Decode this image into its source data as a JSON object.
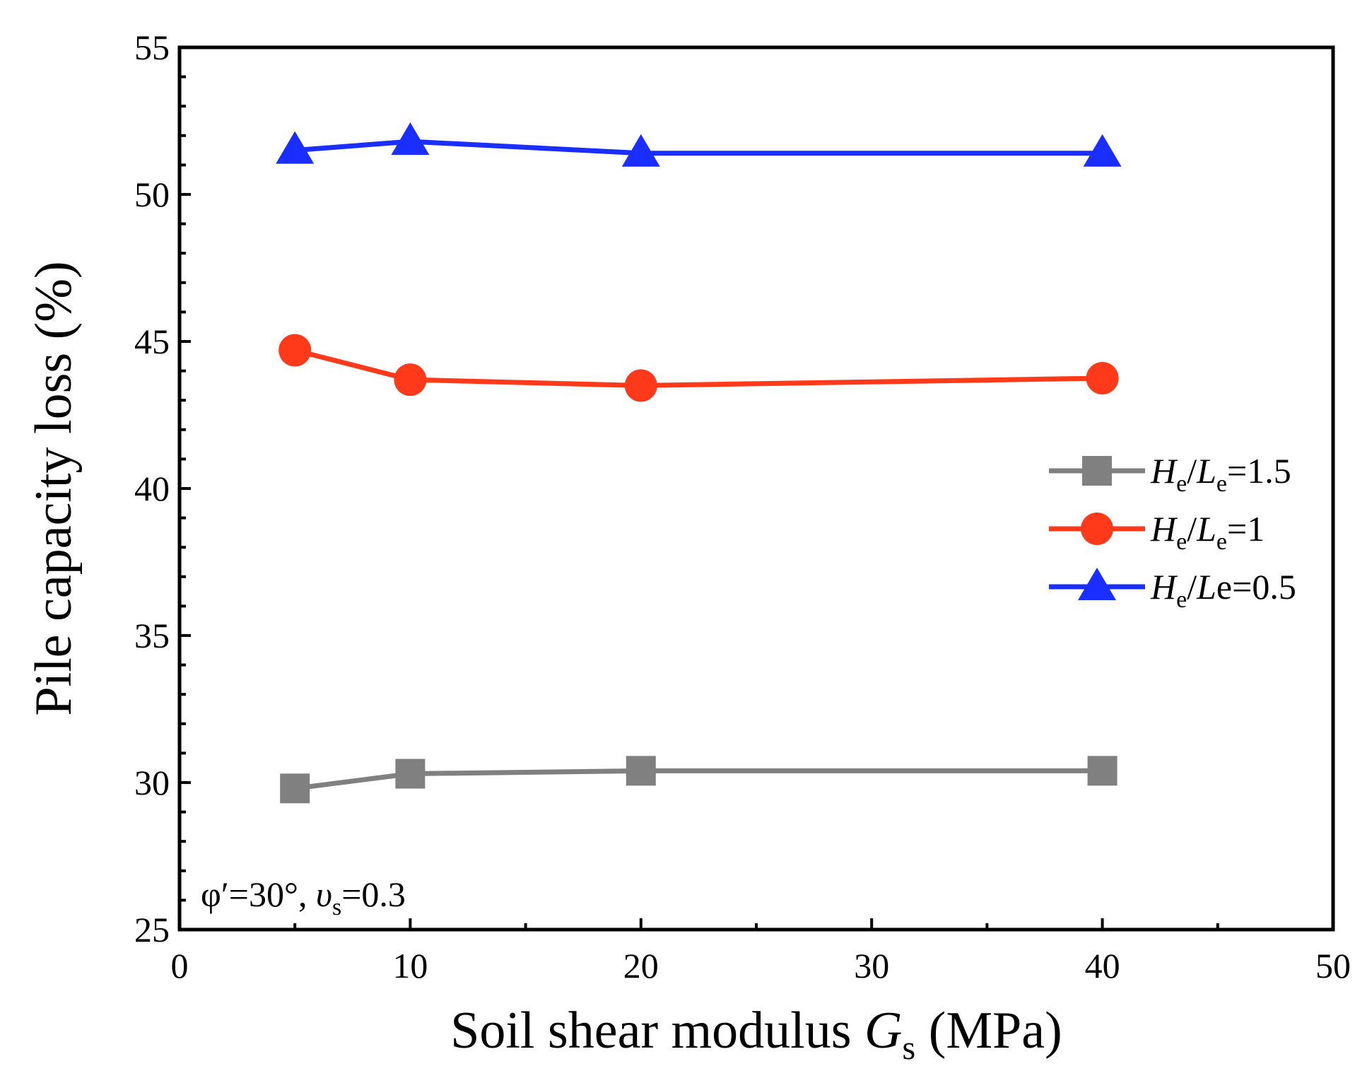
{
  "chart_data": {
    "type": "line",
    "title": "",
    "xlabel": {
      "main": "Soil shear modulus ",
      "var": "G",
      "sub": "s",
      "unit": " (MPa)"
    },
    "ylabel": "Pile capacity loss (%)",
    "xlim": [
      0,
      50
    ],
    "ylim": [
      25,
      55
    ],
    "xticks": [
      "0",
      "10",
      "20",
      "30",
      "40",
      "50"
    ],
    "yticks": [
      "25",
      "30",
      "35",
      "40",
      "45",
      "50",
      "55"
    ],
    "x": [
      5,
      10,
      20,
      40
    ],
    "series": [
      {
        "name": "He/Le=1.5",
        "label_parts": [
          "H",
          "e",
          "/",
          "L",
          "e",
          "=1.5"
        ],
        "marker": "square",
        "color": "#808080",
        "values": [
          29.8,
          30.3,
          30.4,
          30.4
        ]
      },
      {
        "name": "He/Le=1",
        "label_parts": [
          "H",
          "e",
          "/",
          "L",
          "e",
          "=1"
        ],
        "marker": "circle",
        "color": "#ff3a1a",
        "values": [
          44.7,
          43.7,
          43.5,
          43.75
        ]
      },
      {
        "name": "He/Le=0.5",
        "label_parts": [
          "H",
          "e",
          "/",
          "L",
          "",
          "e=0.5"
        ],
        "marker": "triangle",
        "color": "#1a2eff",
        "values": [
          51.5,
          51.8,
          51.4,
          51.4
        ]
      }
    ],
    "legend_position": "center-right",
    "annotation": {
      "phi": "φ′=30°, ",
      "nu": "υ",
      "nu_sub": "s",
      "nu_val": "=0.3"
    }
  }
}
